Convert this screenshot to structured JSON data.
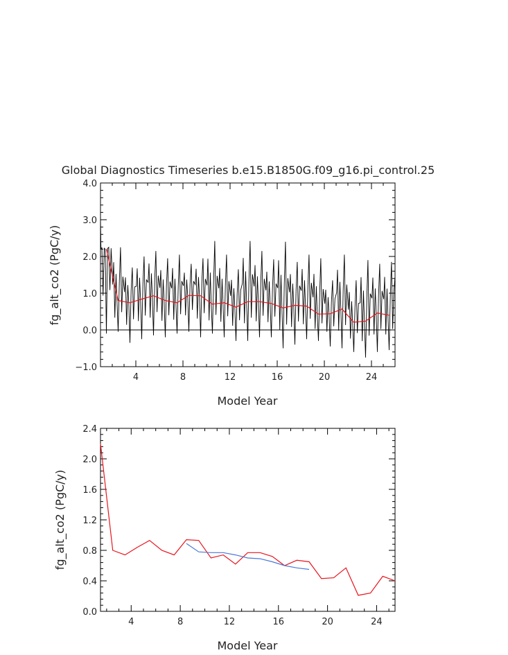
{
  "title": "Global Diagnostics Timeseries b.e15.B1850G.f09_g16.pi_control.25",
  "chart_data": [
    {
      "type": "line",
      "xlabel": "Model Year",
      "ylabel": "fg_alt_co2 (PgC/y)",
      "xlim": [
        1,
        26
      ],
      "ylim": [
        -1.0,
        4.0
      ],
      "xticks": [
        4,
        8,
        12,
        16,
        20,
        24
      ],
      "yticks": [
        -1.0,
        0.0,
        1.0,
        2.0,
        3.0,
        4.0
      ],
      "ytick_labels": [
        "−1.0",
        "0.0",
        "1.0",
        "2.0",
        "3.0",
        "4.0"
      ],
      "zero_line": 0,
      "colors": {
        "monthly": "#000000",
        "annual": "#e8141c"
      },
      "monthly_seasonal_peaks": [
        2.25,
        2.25,
        1.7,
        2.0,
        2.15,
        1.95,
        2.05,
        1.8,
        1.95,
        2.42,
        2.05,
        1.65,
        2.42,
        2.15,
        1.92,
        2.4,
        1.85,
        2.05,
        1.95,
        1.35,
        2.05,
        1.35,
        1.9,
        1.8,
        1.85
      ],
      "monthly_seasonal_troughs": [
        -0.1,
        -0.05,
        -0.35,
        -0.25,
        -0.15,
        -0.2,
        -0.1,
        -0.05,
        -0.2,
        -0.1,
        -0.2,
        -0.3,
        -0.3,
        -0.2,
        -0.2,
        -0.5,
        -0.4,
        -0.25,
        -0.3,
        -0.45,
        -0.5,
        -0.6,
        -0.75,
        -0.6,
        -0.55
      ],
      "annual_x": [
        1.5,
        2.5,
        3.5,
        4.5,
        5.5,
        6.5,
        7.5,
        8.5,
        9.5,
        10.5,
        11.5,
        12.5,
        13.5,
        14.5,
        15.5,
        16.5,
        17.5,
        18.5,
        19.5,
        20.5,
        21.5,
        22.5,
        23.5,
        24.5,
        25.5
      ],
      "annual_y": [
        2.2,
        0.8,
        0.74,
        0.84,
        0.93,
        0.8,
        0.74,
        0.94,
        0.93,
        0.7,
        0.74,
        0.62,
        0.77,
        0.77,
        0.72,
        0.6,
        0.67,
        0.65,
        0.43,
        0.44,
        0.57,
        0.21,
        0.24,
        0.46,
        0.4
      ]
    },
    {
      "type": "line",
      "xlabel": "Model Year",
      "ylabel": "fg_alt_co2 (PgC/y)",
      "xlim": [
        1.5,
        25.5
      ],
      "ylim": [
        0.0,
        2.4
      ],
      "xticks": [
        4,
        8,
        12,
        16,
        20,
        24
      ],
      "yticks": [
        0.0,
        0.4,
        0.8,
        1.2,
        1.6,
        2.0,
        2.4
      ],
      "ytick_labels": [
        "0.0",
        "0.4",
        "0.8",
        "1.2",
        "1.6",
        "2.0",
        "2.4"
      ],
      "series": [
        {
          "color": "#e8141c",
          "x": [
            1.5,
            2.5,
            3.5,
            4.5,
            5.5,
            6.5,
            7.5,
            8.5,
            9.5,
            10.5,
            11.5,
            12.5,
            13.5,
            14.5,
            15.5,
            16.5,
            17.5,
            18.5,
            19.5,
            20.5,
            21.5,
            22.5,
            23.5,
            24.5,
            25.5
          ],
          "values": [
            2.2,
            0.8,
            0.74,
            0.84,
            0.93,
            0.8,
            0.74,
            0.94,
            0.93,
            0.7,
            0.74,
            0.62,
            0.77,
            0.77,
            0.72,
            0.6,
            0.67,
            0.65,
            0.43,
            0.44,
            0.57,
            0.21,
            0.24,
            0.46,
            0.4
          ]
        },
        {
          "color": "#4a78d8",
          "x": [
            8.5,
            9.5,
            10.5,
            11.5,
            12.5,
            13.5,
            14.5,
            15.5,
            16.5,
            17.5,
            18.5
          ],
          "values": [
            0.89,
            0.78,
            0.77,
            0.77,
            0.74,
            0.7,
            0.69,
            0.65,
            0.6,
            0.57,
            0.55
          ]
        }
      ]
    }
  ]
}
